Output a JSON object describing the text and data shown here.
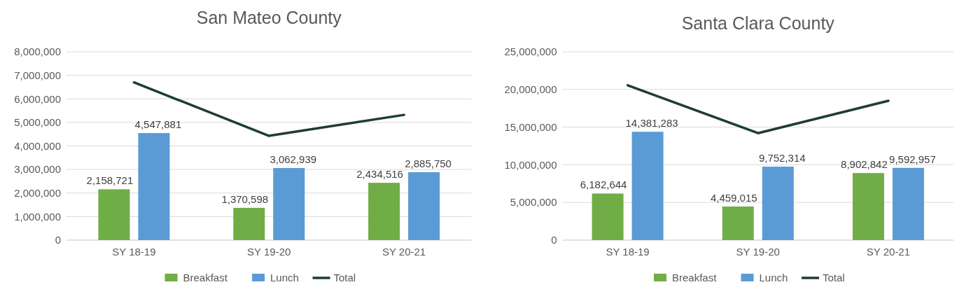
{
  "chart_data": [
    {
      "type": "bar",
      "title": "San Mateo County",
      "categories": [
        "SY 18-19",
        "SY 19-20",
        "SY 20-21"
      ],
      "series": [
        {
          "name": "Breakfast",
          "color": "#70ad47",
          "values": [
            2158721,
            1370598,
            2434516
          ],
          "value_labels": [
            "2,158,721",
            "1,370,598",
            "2,434,516"
          ]
        },
        {
          "name": "Lunch",
          "color": "#5b9bd5",
          "values": [
            4547881,
            3062939,
            2885750
          ],
          "value_labels": [
            "4,547,881",
            "3,062,939",
            "2,885,750"
          ]
        },
        {
          "name": "Total",
          "type": "line",
          "color": "#1e3d33",
          "values": [
            6700000,
            4430000,
            5320000
          ]
        }
      ],
      "ylim": [
        0,
        8000000
      ],
      "yticks": [
        {
          "value": 0,
          "label": "0"
        },
        {
          "value": 1000000,
          "label": "1,000,000"
        },
        {
          "value": 2000000,
          "label": "2,000,000"
        },
        {
          "value": 3000000,
          "label": "3,000,000"
        },
        {
          "value": 4000000,
          "label": "4,000,000"
        },
        {
          "value": 5000000,
          "label": "5,000,000"
        },
        {
          "value": 6000000,
          "label": "6,000,000"
        },
        {
          "value": 7000000,
          "label": "7,000,000"
        },
        {
          "value": 8000000,
          "label": "8,000,000"
        }
      ],
      "grid": "y",
      "legend": "bottom",
      "marker": "none"
    },
    {
      "type": "bar",
      "title": "Santa Clara County",
      "categories": [
        "SY 18-19",
        "SY 19-20",
        "SY 20-21"
      ],
      "series": [
        {
          "name": "Breakfast",
          "color": "#70ad47",
          "values": [
            6182644,
            4459015,
            8902842
          ],
          "value_labels": [
            "6,182,644",
            "4,459,015",
            "8,902,842"
          ]
        },
        {
          "name": "Lunch",
          "color": "#5b9bd5",
          "values": [
            14381283,
            9752314,
            9592957
          ],
          "value_labels": [
            "14,381,283",
            "9,752,314",
            "9,592,957"
          ]
        },
        {
          "name": "Total",
          "type": "line",
          "color": "#1e3d33",
          "values": [
            20550000,
            14200000,
            18500000
          ]
        }
      ],
      "ylim": [
        0,
        25000000
      ],
      "yticks": [
        {
          "value": 0,
          "label": "0"
        },
        {
          "value": 5000000,
          "label": "5,000,000"
        },
        {
          "value": 10000000,
          "label": "10,000,000"
        },
        {
          "value": 15000000,
          "label": "15,000,000"
        },
        {
          "value": 20000000,
          "label": "20,000,000"
        },
        {
          "value": 25000000,
          "label": "25,000,000"
        }
      ],
      "grid": "y",
      "legend": "bottom",
      "marker": "none"
    }
  ]
}
